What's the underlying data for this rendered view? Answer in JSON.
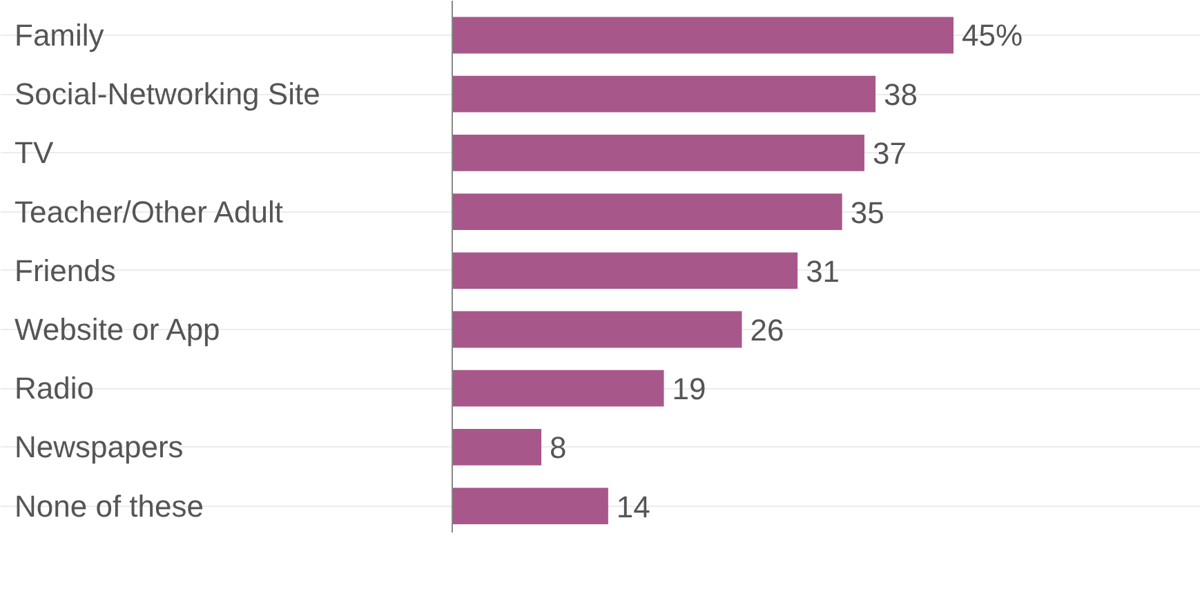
{
  "chart_data": {
    "type": "bar",
    "orientation": "horizontal",
    "categories": [
      "Family",
      "Social-Networking Site",
      "TV",
      "Teacher/Other Adult",
      "Friends",
      "Website or App",
      "Radio",
      "Newspapers",
      "None of these"
    ],
    "values": [
      45,
      38,
      37,
      35,
      31,
      26,
      19,
      8,
      14
    ],
    "value_labels": [
      "45%",
      "38",
      "37",
      "35",
      "31",
      "26",
      "19",
      "8",
      "14"
    ],
    "color": "#a8578a",
    "grid": "y"
  }
}
